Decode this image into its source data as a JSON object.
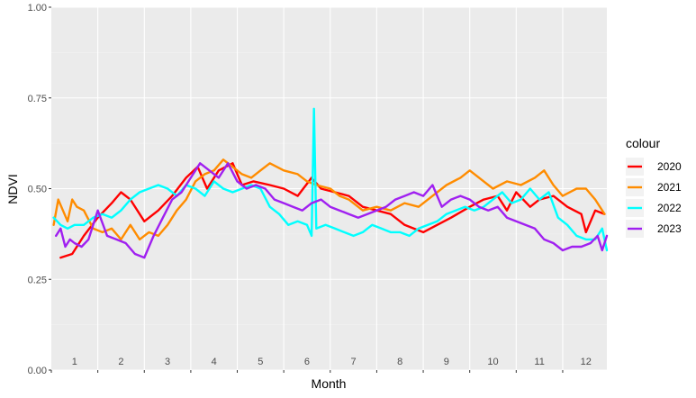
{
  "chart_data": {
    "type": "line",
    "title": "",
    "xlabel": "Month",
    "ylabel": "NDVI",
    "xlim": [
      0.5,
      12.45
    ],
    "ylim": [
      0,
      1
    ],
    "yticks": [
      0,
      0.25,
      0.5,
      0.75,
      1
    ],
    "ytick_labels": [
      "0.00",
      "0.25",
      "0.50",
      "0.75",
      "1.00"
    ],
    "month_labels": [
      "1",
      "2",
      "3",
      "4",
      "5",
      "6",
      "7",
      "8",
      "9",
      "10",
      "11",
      "12"
    ],
    "grid": true,
    "legend_title": "colour",
    "legend_position": "right",
    "series": [
      {
        "name": "2020",
        "color": "#ff0000",
        "points": [
          [
            0.7,
            0.31
          ],
          [
            0.95,
            0.32
          ],
          [
            1.2,
            0.37
          ],
          [
            1.5,
            0.42
          ],
          [
            1.8,
            0.46
          ],
          [
            2.0,
            0.49
          ],
          [
            2.2,
            0.47
          ],
          [
            2.5,
            0.41
          ],
          [
            2.8,
            0.44
          ],
          [
            3.1,
            0.48
          ],
          [
            3.4,
            0.53
          ],
          [
            3.65,
            0.56
          ],
          [
            3.85,
            0.5
          ],
          [
            4.1,
            0.55
          ],
          [
            4.4,
            0.57
          ],
          [
            4.6,
            0.51
          ],
          [
            4.85,
            0.52
          ],
          [
            5.2,
            0.51
          ],
          [
            5.5,
            0.5
          ],
          [
            5.8,
            0.48
          ],
          [
            6.1,
            0.53
          ],
          [
            6.3,
            0.5
          ],
          [
            6.6,
            0.49
          ],
          [
            6.9,
            0.48
          ],
          [
            7.2,
            0.45
          ],
          [
            7.5,
            0.44
          ],
          [
            7.8,
            0.43
          ],
          [
            8.1,
            0.4
          ],
          [
            8.5,
            0.38
          ],
          [
            8.8,
            0.4
          ],
          [
            9.1,
            0.42
          ],
          [
            9.5,
            0.45
          ],
          [
            9.8,
            0.47
          ],
          [
            10.1,
            0.48
          ],
          [
            10.3,
            0.44
          ],
          [
            10.5,
            0.49
          ],
          [
            10.8,
            0.45
          ],
          [
            11.0,
            0.47
          ],
          [
            11.3,
            0.48
          ],
          [
            11.6,
            0.45
          ],
          [
            11.9,
            0.43
          ],
          [
            12.0,
            0.38
          ],
          [
            12.2,
            0.44
          ],
          [
            12.4,
            0.43
          ]
        ]
      },
      {
        "name": "2021",
        "color": "#ff8c00",
        "points": [
          [
            0.55,
            0.4
          ],
          [
            0.65,
            0.47
          ],
          [
            0.75,
            0.44
          ],
          [
            0.85,
            0.41
          ],
          [
            0.95,
            0.47
          ],
          [
            1.05,
            0.45
          ],
          [
            1.2,
            0.44
          ],
          [
            1.4,
            0.39
          ],
          [
            1.6,
            0.38
          ],
          [
            1.8,
            0.39
          ],
          [
            2.0,
            0.36
          ],
          [
            2.2,
            0.4
          ],
          [
            2.4,
            0.36
          ],
          [
            2.6,
            0.38
          ],
          [
            2.8,
            0.37
          ],
          [
            3.0,
            0.4
          ],
          [
            3.2,
            0.44
          ],
          [
            3.4,
            0.47
          ],
          [
            3.6,
            0.52
          ],
          [
            3.8,
            0.54
          ],
          [
            4.0,
            0.55
          ],
          [
            4.2,
            0.58
          ],
          [
            4.4,
            0.56
          ],
          [
            4.6,
            0.54
          ],
          [
            4.8,
            0.53
          ],
          [
            5.0,
            0.55
          ],
          [
            5.2,
            0.57
          ],
          [
            5.5,
            0.55
          ],
          [
            5.8,
            0.54
          ],
          [
            6.0,
            0.52
          ],
          [
            6.2,
            0.51
          ],
          [
            6.5,
            0.5
          ],
          [
            6.7,
            0.48
          ],
          [
            6.9,
            0.47
          ],
          [
            7.2,
            0.44
          ],
          [
            7.5,
            0.45
          ],
          [
            7.8,
            0.44
          ],
          [
            8.1,
            0.46
          ],
          [
            8.4,
            0.45
          ],
          [
            8.7,
            0.48
          ],
          [
            9.0,
            0.51
          ],
          [
            9.3,
            0.53
          ],
          [
            9.5,
            0.55
          ],
          [
            9.8,
            0.52
          ],
          [
            10.0,
            0.5
          ],
          [
            10.3,
            0.52
          ],
          [
            10.6,
            0.51
          ],
          [
            10.9,
            0.53
          ],
          [
            11.1,
            0.55
          ],
          [
            11.3,
            0.51
          ],
          [
            11.5,
            0.48
          ],
          [
            11.8,
            0.5
          ],
          [
            12.0,
            0.5
          ],
          [
            12.2,
            0.47
          ],
          [
            12.4,
            0.43
          ]
        ]
      },
      {
        "name": "2022",
        "color": "#00ffff",
        "points": [
          [
            0.55,
            0.42
          ],
          [
            0.7,
            0.4
          ],
          [
            0.85,
            0.39
          ],
          [
            1.0,
            0.4
          ],
          [
            1.2,
            0.4
          ],
          [
            1.4,
            0.42
          ],
          [
            1.6,
            0.43
          ],
          [
            1.8,
            0.42
          ],
          [
            2.0,
            0.44
          ],
          [
            2.2,
            0.47
          ],
          [
            2.4,
            0.49
          ],
          [
            2.6,
            0.5
          ],
          [
            2.8,
            0.51
          ],
          [
            3.0,
            0.5
          ],
          [
            3.2,
            0.48
          ],
          [
            3.4,
            0.51
          ],
          [
            3.6,
            0.5
          ],
          [
            3.8,
            0.48
          ],
          [
            4.0,
            0.52
          ],
          [
            4.2,
            0.5
          ],
          [
            4.4,
            0.49
          ],
          [
            4.6,
            0.5
          ],
          [
            4.8,
            0.51
          ],
          [
            5.0,
            0.5
          ],
          [
            5.2,
            0.45
          ],
          [
            5.4,
            0.43
          ],
          [
            5.6,
            0.4
          ],
          [
            5.8,
            0.41
          ],
          [
            6.0,
            0.4
          ],
          [
            6.1,
            0.37
          ],
          [
            6.15,
            0.72
          ],
          [
            6.2,
            0.39
          ],
          [
            6.4,
            0.4
          ],
          [
            6.6,
            0.39
          ],
          [
            6.8,
            0.38
          ],
          [
            7.0,
            0.37
          ],
          [
            7.2,
            0.38
          ],
          [
            7.4,
            0.4
          ],
          [
            7.6,
            0.39
          ],
          [
            7.8,
            0.38
          ],
          [
            8.0,
            0.38
          ],
          [
            8.2,
            0.37
          ],
          [
            8.4,
            0.39
          ],
          [
            8.6,
            0.4
          ],
          [
            8.8,
            0.41
          ],
          [
            9.0,
            0.43
          ],
          [
            9.2,
            0.44
          ],
          [
            9.4,
            0.45
          ],
          [
            9.6,
            0.44
          ],
          [
            9.8,
            0.45
          ],
          [
            10.0,
            0.47
          ],
          [
            10.2,
            0.49
          ],
          [
            10.4,
            0.46
          ],
          [
            10.6,
            0.47
          ],
          [
            10.8,
            0.5
          ],
          [
            11.0,
            0.47
          ],
          [
            11.2,
            0.49
          ],
          [
            11.4,
            0.42
          ],
          [
            11.6,
            0.4
          ],
          [
            11.8,
            0.37
          ],
          [
            12.0,
            0.36
          ],
          [
            12.2,
            0.36
          ],
          [
            12.35,
            0.39
          ],
          [
            12.45,
            0.33
          ]
        ]
      },
      {
        "name": "2023",
        "color": "#a020f0",
        "points": [
          [
            0.6,
            0.37
          ],
          [
            0.7,
            0.39
          ],
          [
            0.8,
            0.34
          ],
          [
            0.9,
            0.36
          ],
          [
            1.0,
            0.35
          ],
          [
            1.15,
            0.34
          ],
          [
            1.3,
            0.36
          ],
          [
            1.5,
            0.44
          ],
          [
            1.7,
            0.37
          ],
          [
            1.9,
            0.36
          ],
          [
            2.1,
            0.35
          ],
          [
            2.3,
            0.32
          ],
          [
            2.5,
            0.31
          ],
          [
            2.7,
            0.37
          ],
          [
            2.9,
            0.42
          ],
          [
            3.1,
            0.47
          ],
          [
            3.3,
            0.49
          ],
          [
            3.5,
            0.53
          ],
          [
            3.7,
            0.57
          ],
          [
            3.9,
            0.55
          ],
          [
            4.1,
            0.53
          ],
          [
            4.3,
            0.57
          ],
          [
            4.5,
            0.52
          ],
          [
            4.7,
            0.5
          ],
          [
            4.9,
            0.51
          ],
          [
            5.1,
            0.5
          ],
          [
            5.3,
            0.47
          ],
          [
            5.5,
            0.46
          ],
          [
            5.7,
            0.45
          ],
          [
            5.9,
            0.44
          ],
          [
            6.1,
            0.46
          ],
          [
            6.3,
            0.47
          ],
          [
            6.5,
            0.45
          ],
          [
            6.7,
            0.44
          ],
          [
            6.9,
            0.43
          ],
          [
            7.1,
            0.42
          ],
          [
            7.3,
            0.43
          ],
          [
            7.5,
            0.44
          ],
          [
            7.7,
            0.45
          ],
          [
            7.9,
            0.47
          ],
          [
            8.1,
            0.48
          ],
          [
            8.3,
            0.49
          ],
          [
            8.5,
            0.48
          ],
          [
            8.7,
            0.51
          ],
          [
            8.9,
            0.45
          ],
          [
            9.1,
            0.47
          ],
          [
            9.3,
            0.48
          ],
          [
            9.5,
            0.47
          ],
          [
            9.7,
            0.45
          ],
          [
            9.9,
            0.44
          ],
          [
            10.1,
            0.45
          ],
          [
            10.3,
            0.42
          ],
          [
            10.5,
            0.41
          ],
          [
            10.7,
            0.4
          ],
          [
            10.9,
            0.39
          ],
          [
            11.1,
            0.36
          ],
          [
            11.3,
            0.35
          ],
          [
            11.5,
            0.33
          ],
          [
            11.7,
            0.34
          ],
          [
            11.9,
            0.34
          ],
          [
            12.1,
            0.35
          ],
          [
            12.25,
            0.37
          ],
          [
            12.35,
            0.33
          ],
          [
            12.45,
            0.37
          ]
        ]
      }
    ]
  }
}
